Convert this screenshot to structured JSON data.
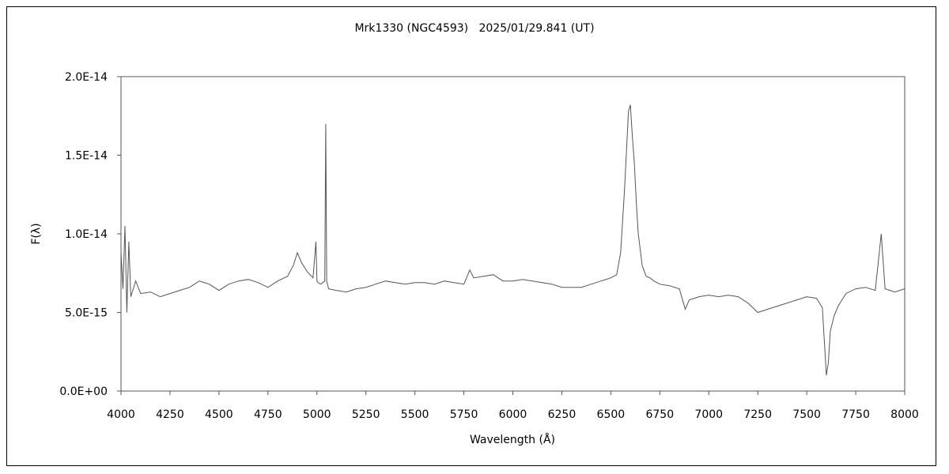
{
  "chart_data": {
    "type": "line",
    "title": "Mrk1330 (NGC4593)   2025/01/29.841 (UT)",
    "xlabel": "Wavelength (Å)",
    "ylabel": "F(λ)",
    "xlim": [
      4000,
      8000
    ],
    "ylim": [
      0,
      2e-14
    ],
    "x_ticks": [
      4000,
      4250,
      4500,
      4750,
      5000,
      5250,
      5500,
      5750,
      6000,
      6250,
      6500,
      6750,
      7000,
      7250,
      7500,
      7750,
      8000
    ],
    "y_ticks": [
      0,
      5e-15,
      1e-14,
      1.5e-14,
      2e-14
    ],
    "y_tick_labels": [
      "0.0E+00",
      "5.0E-15",
      "1.0E-14",
      "1.5E-14",
      "2.0E-14"
    ],
    "grid": false,
    "legend": "none",
    "series": [
      {
        "color": "#555555",
        "x": [
          4000,
          4010,
          4020,
          4030,
          4040,
          4050,
          4075,
          4100,
          4150,
          4200,
          4250,
          4300,
          4350,
          4400,
          4450,
          4500,
          4550,
          4600,
          4650,
          4700,
          4750,
          4800,
          4850,
          4880,
          4900,
          4920,
          4950,
          4980,
          4995,
          5000,
          5005,
          5020,
          5040,
          5045,
          5050,
          5060,
          5100,
          5150,
          5200,
          5250,
          5300,
          5350,
          5400,
          5450,
          5500,
          5550,
          5600,
          5650,
          5700,
          5750,
          5780,
          5800,
          5850,
          5900,
          5950,
          6000,
          6050,
          6100,
          6150,
          6200,
          6250,
          6300,
          6350,
          6400,
          6450,
          6500,
          6530,
          6550,
          6570,
          6590,
          6600,
          6610,
          6620,
          6630,
          6640,
          6660,
          6680,
          6700,
          6720,
          6750,
          6800,
          6850,
          6880,
          6900,
          6950,
          7000,
          7050,
          7100,
          7150,
          7200,
          7250,
          7300,
          7350,
          7400,
          7450,
          7500,
          7550,
          7580,
          7600,
          7610,
          7620,
          7640,
          7660,
          7700,
          7750,
          7800,
          7850,
          7880,
          7900,
          7950,
          8000
        ],
        "y": [
          8.8e-15,
          6.5e-15,
          1.05e-14,
          5e-15,
          9.5e-15,
          6e-15,
          7e-15,
          6.2e-15,
          6.3e-15,
          6e-15,
          6.2e-15,
          6.4e-15,
          6.6e-15,
          7e-15,
          6.8e-15,
          6.4e-15,
          6.8e-15,
          7e-15,
          7.1e-15,
          6.9e-15,
          6.6e-15,
          7e-15,
          7.3e-15,
          8e-15,
          8.8e-15,
          8.2e-15,
          7.6e-15,
          7.2e-15,
          9.5e-15,
          7e-15,
          6.9e-15,
          6.8e-15,
          7e-15,
          1.7e-14,
          7e-15,
          6.5e-15,
          6.4e-15,
          6.3e-15,
          6.5e-15,
          6.6e-15,
          6.8e-15,
          7e-15,
          6.9e-15,
          6.8e-15,
          6.9e-15,
          6.9e-15,
          6.8e-15,
          7e-15,
          6.9e-15,
          6.8e-15,
          7.7e-15,
          7.2e-15,
          7.3e-15,
          7.4e-15,
          7e-15,
          7e-15,
          7.1e-15,
          7e-15,
          6.9e-15,
          6.8e-15,
          6.6e-15,
          6.6e-15,
          6.6e-15,
          6.8e-15,
          7e-15,
          7.2e-15,
          7.4e-15,
          8.8e-15,
          1.28e-14,
          1.78e-14,
          1.82e-14,
          1.62e-14,
          1.45e-14,
          1.2e-14,
          1e-14,
          8e-15,
          7.3e-15,
          7.2e-15,
          7e-15,
          6.8e-15,
          6.7e-15,
          6.5e-15,
          5.2e-15,
          5.8e-15,
          6e-15,
          6.1e-15,
          6e-15,
          6.1e-15,
          6e-15,
          5.6e-15,
          5e-15,
          5.2e-15,
          5.4e-15,
          5.6e-15,
          5.8e-15,
          6e-15,
          5.9e-15,
          5.3e-15,
          1e-15,
          1.8e-15,
          3.8e-15,
          4.8e-15,
          5.4e-15,
          6.2e-15,
          6.5e-15,
          6.6e-15,
          6.4e-15,
          1e-14,
          6.5e-15,
          6.3e-15,
          6.5e-15
        ]
      }
    ]
  }
}
